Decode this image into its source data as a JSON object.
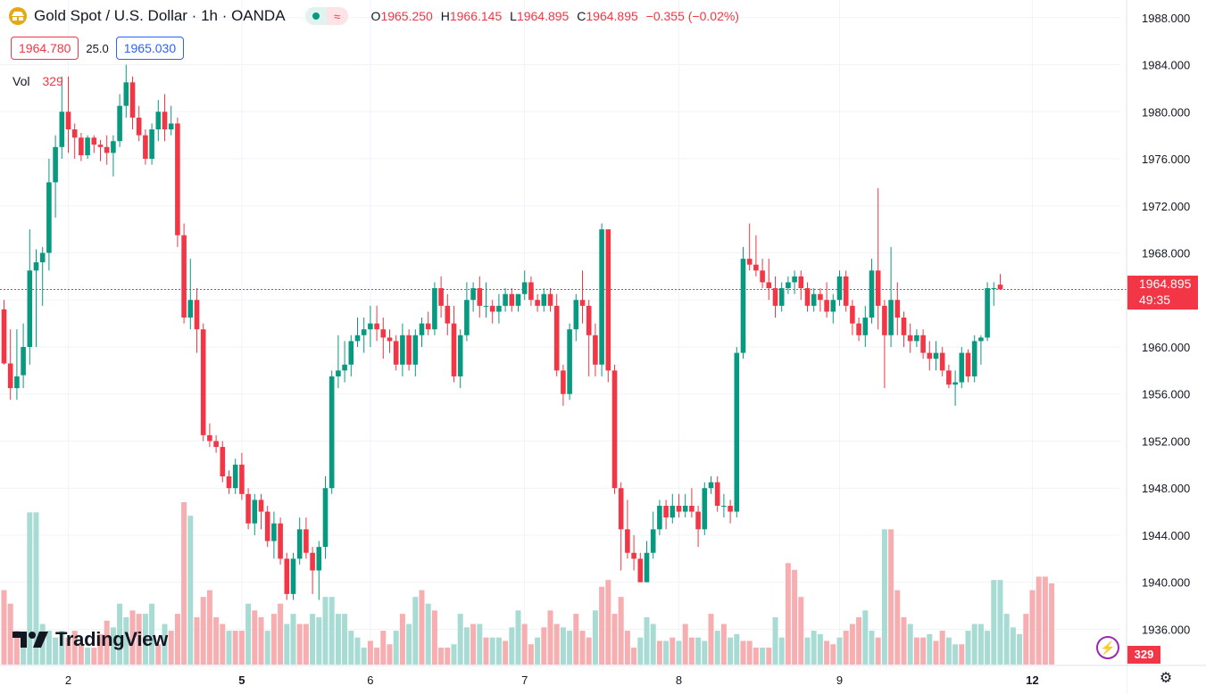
{
  "legend": {
    "symbol_title": "Gold Spot / U.S. Dollar · 1h · OANDA",
    "logo_icon": "gold-bars-icon",
    "open_key": "O",
    "open": "1965.250",
    "high_key": "H",
    "high": "1966.145",
    "low_key": "L",
    "low": "1964.895",
    "close_key": "C",
    "close": "1964.895",
    "change": "−0.355 (−0.02%)"
  },
  "quote": {
    "sell": "1964.780",
    "spread": "25.0",
    "buy": "1965.030"
  },
  "volume": {
    "label": "Vol",
    "value": "329"
  },
  "price_tag": {
    "price": "1964.895",
    "countdown": "49:35"
  },
  "vol_tag": "329",
  "brand": "TradingView",
  "colors": {
    "up": "#089981",
    "down": "#f23645",
    "vol_up": "#a7dbd3",
    "vol_down": "#f7aeb0",
    "grid": "#f0f3fa"
  },
  "chart_data": {
    "type": "candlestick",
    "price_axis": {
      "ticks": [
        "1988.000",
        "1984.000",
        "1980.000",
        "1976.000",
        "1972.000",
        "1968.000",
        "1964.000",
        "1960.000",
        "1956.000",
        "1952.000",
        "1948.000",
        "1944.000",
        "1940.000",
        "1936.000"
      ],
      "ylim": [
        1933.0,
        1989.5
      ],
      "last_price": 1964.895
    },
    "time_axis": {
      "labels": [
        "2",
        "5",
        "6",
        "7",
        "8",
        "9",
        "12"
      ],
      "label_index": [
        10,
        37,
        57,
        81,
        105,
        130,
        160
      ]
    },
    "candles": [
      [
        1963.2,
        1964.0,
        1958.5,
        1958.6
      ],
      [
        1958.6,
        1961.5,
        1955.5,
        1956.5
      ],
      [
        1956.5,
        1961.5,
        1955.5,
        1957.5
      ],
      [
        1957.6,
        1962.0,
        1956.5,
        1960.0
      ],
      [
        1960.0,
        1970.0,
        1958.5,
        1966.5
      ],
      [
        1966.5,
        1968.3,
        1960.0,
        1967.2
      ],
      [
        1967.2,
        1968.5,
        1963.5,
        1968.0
      ],
      [
        1968.0,
        1976.0,
        1966.5,
        1974.0
      ],
      [
        1974.0,
        1978.0,
        1971.0,
        1977.0
      ],
      [
        1977.0,
        1983.0,
        1976.0,
        1980.0
      ],
      [
        1980.0,
        1983.0,
        1976.5,
        1978.5
      ],
      [
        1978.5,
        1979.0,
        1976.0,
        1977.8
      ],
      [
        1977.8,
        1978.2,
        1975.8,
        1976.3
      ],
      [
        1976.3,
        1978.0,
        1976.0,
        1977.8
      ],
      [
        1977.8,
        1978.0,
        1976.5,
        1977.2
      ],
      [
        1977.2,
        1977.6,
        1975.8,
        1977.0
      ],
      [
        1977.0,
        1978.0,
        1975.5,
        1976.5
      ],
      [
        1976.5,
        1978.0,
        1974.5,
        1977.5
      ],
      [
        1977.5,
        1981.5,
        1977.0,
        1980.5
      ],
      [
        1980.5,
        1984.0,
        1979.5,
        1982.5
      ],
      [
        1982.5,
        1983.0,
        1978.5,
        1979.5
      ],
      [
        1979.5,
        1980.5,
        1977.5,
        1978.0
      ],
      [
        1978.0,
        1978.5,
        1975.5,
        1976.0
      ],
      [
        1976.0,
        1979.0,
        1975.5,
        1978.5
      ],
      [
        1978.5,
        1981.0,
        1977.5,
        1980.0
      ],
      [
        1980.0,
        1981.5,
        1977.5,
        1978.5
      ],
      [
        1978.5,
        1980.5,
        1978.0,
        1979.0
      ],
      [
        1979.0,
        1979.5,
        1968.5,
        1969.5
      ],
      [
        1969.5,
        1970.5,
        1962.0,
        1962.5
      ],
      [
        1962.5,
        1967.5,
        1961.5,
        1964.0
      ],
      [
        1964.0,
        1965.0,
        1959.5,
        1961.5
      ],
      [
        1961.5,
        1962.0,
        1952.0,
        1952.5
      ],
      [
        1952.5,
        1953.5,
        1951.5,
        1952.0
      ],
      [
        1952.0,
        1952.5,
        1951.0,
        1951.5
      ],
      [
        1951.5,
        1952.0,
        1948.5,
        1949.0
      ],
      [
        1949.0,
        1949.5,
        1947.5,
        1948.0
      ],
      [
        1948.0,
        1950.5,
        1947.5,
        1950.0
      ],
      [
        1950.0,
        1951.0,
        1947.0,
        1947.5
      ],
      [
        1947.5,
        1948.0,
        1944.5,
        1945.0
      ],
      [
        1945.0,
        1947.5,
        1944.0,
        1947.0
      ],
      [
        1947.0,
        1947.5,
        1944.5,
        1946.0
      ],
      [
        1946.0,
        1946.5,
        1943.0,
        1943.5
      ],
      [
        1943.5,
        1946.0,
        1942.0,
        1945.0
      ],
      [
        1945.0,
        1945.5,
        1941.5,
        1942.0
      ],
      [
        1942.0,
        1942.5,
        1938.5,
        1939.0
      ],
      [
        1939.0,
        1942.5,
        1938.5,
        1942.0
      ],
      [
        1942.0,
        1945.5,
        1941.5,
        1944.5
      ],
      [
        1944.5,
        1945.5,
        1942.0,
        1942.5
      ],
      [
        1942.5,
        1943.0,
        1939.0,
        1941.0
      ],
      [
        1941.0,
        1943.5,
        1938.5,
        1943.0
      ],
      [
        1943.0,
        1949.0,
        1942.0,
        1948.0
      ],
      [
        1948.0,
        1958.0,
        1947.5,
        1957.5
      ],
      [
        1957.5,
        1961.0,
        1956.5,
        1958.0
      ],
      [
        1958.0,
        1960.5,
        1957.0,
        1958.5
      ],
      [
        1958.5,
        1961.0,
        1957.5,
        1960.5
      ],
      [
        1960.5,
        1962.5,
        1960.0,
        1961.0
      ],
      [
        1961.0,
        1962.5,
        1959.5,
        1961.5
      ],
      [
        1961.5,
        1963.5,
        1960.0,
        1962.0
      ],
      [
        1962.0,
        1963.5,
        1960.5,
        1961.5
      ],
      [
        1961.5,
        1962.5,
        1959.0,
        1960.8
      ],
      [
        1960.8,
        1961.5,
        1959.5,
        1960.5
      ],
      [
        1960.5,
        1961.0,
        1958.0,
        1958.5
      ],
      [
        1958.5,
        1962.0,
        1957.5,
        1961.0
      ],
      [
        1961.0,
        1961.5,
        1958.0,
        1958.5
      ],
      [
        1958.5,
        1961.5,
        1957.5,
        1961.0
      ],
      [
        1961.0,
        1962.5,
        1960.0,
        1962.0
      ],
      [
        1962.0,
        1963.0,
        1961.0,
        1961.5
      ],
      [
        1961.5,
        1965.5,
        1961.0,
        1965.0
      ],
      [
        1965.0,
        1966.0,
        1962.5,
        1963.5
      ],
      [
        1963.5,
        1964.5,
        1961.0,
        1962.0
      ],
      [
        1962.0,
        1963.5,
        1957.0,
        1957.5
      ],
      [
        1957.5,
        1961.5,
        1956.5,
        1961.0
      ],
      [
        1961.0,
        1965.5,
        1960.5,
        1964.0
      ],
      [
        1964.0,
        1965.5,
        1963.0,
        1965.0
      ],
      [
        1965.0,
        1966.0,
        1962.5,
        1963.5
      ],
      [
        1963.5,
        1965.5,
        1962.5,
        1963.5
      ],
      [
        1963.5,
        1964.0,
        1962.0,
        1963.0
      ],
      [
        1963.0,
        1964.5,
        1962.0,
        1963.5
      ],
      [
        1963.5,
        1965.0,
        1963.0,
        1964.5
      ],
      [
        1964.5,
        1965.0,
        1963.0,
        1963.5
      ],
      [
        1963.5,
        1964.5,
        1963.0,
        1964.5
      ],
      [
        1964.5,
        1966.5,
        1964.0,
        1965.5
      ],
      [
        1965.5,
        1966.0,
        1963.5,
        1964.0
      ],
      [
        1964.0,
        1964.5,
        1963.0,
        1963.5
      ],
      [
        1963.5,
        1965.0,
        1963.0,
        1964.5
      ],
      [
        1964.5,
        1965.0,
        1963.0,
        1963.5
      ],
      [
        1963.5,
        1964.5,
        1957.5,
        1958.0
      ],
      [
        1958.0,
        1958.5,
        1955.0,
        1956.0
      ],
      [
        1956.0,
        1962.0,
        1955.5,
        1961.5
      ],
      [
        1961.5,
        1964.5,
        1960.5,
        1964.0
      ],
      [
        1964.0,
        1966.5,
        1962.0,
        1963.5
      ],
      [
        1963.5,
        1964.0,
        1957.5,
        1961.0
      ],
      [
        1961.0,
        1962.0,
        1957.5,
        1958.5
      ],
      [
        1958.5,
        1970.5,
        1957.5,
        1970.0
      ],
      [
        1970.0,
        1970.0,
        1957.0,
        1958.0
      ],
      [
        1958.0,
        1958.5,
        1947.5,
        1948.0
      ],
      [
        1948.0,
        1948.5,
        1941.0,
        1944.5
      ],
      [
        1944.5,
        1947.0,
        1942.0,
        1942.5
      ],
      [
        1942.5,
        1944.0,
        1941.0,
        1942.0
      ],
      [
        1942.0,
        1942.5,
        1940.0,
        1940.0
      ],
      [
        1940.0,
        1943.5,
        1940.0,
        1942.5
      ],
      [
        1942.5,
        1946.0,
        1942.0,
        1944.5
      ],
      [
        1944.5,
        1947.0,
        1944.0,
        1946.5
      ],
      [
        1946.5,
        1947.0,
        1944.5,
        1945.5
      ],
      [
        1945.5,
        1947.5,
        1945.0,
        1946.5
      ],
      [
        1946.5,
        1947.5,
        1945.5,
        1946.0
      ],
      [
        1946.0,
        1947.5,
        1945.5,
        1946.5
      ],
      [
        1946.5,
        1948.0,
        1945.5,
        1946.0
      ],
      [
        1946.0,
        1946.5,
        1943.0,
        1944.5
      ],
      [
        1944.5,
        1948.5,
        1944.0,
        1948.0
      ],
      [
        1948.0,
        1949.0,
        1947.5,
        1948.5
      ],
      [
        1948.5,
        1949.0,
        1946.0,
        1946.5
      ],
      [
        1946.5,
        1947.5,
        1945.5,
        1946.5
      ],
      [
        1946.5,
        1947.0,
        1945.0,
        1946.0
      ],
      [
        1946.0,
        1960.0,
        1945.5,
        1959.5
      ],
      [
        1959.5,
        1968.5,
        1959.0,
        1967.5
      ],
      [
        1967.5,
        1970.5,
        1966.5,
        1967.0
      ],
      [
        1967.0,
        1969.5,
        1966.0,
        1966.5
      ],
      [
        1966.5,
        1967.5,
        1965.0,
        1965.5
      ],
      [
        1965.5,
        1967.5,
        1964.0,
        1965.0
      ],
      [
        1965.0,
        1966.0,
        1962.5,
        1963.5
      ],
      [
        1963.5,
        1965.5,
        1963.0,
        1965.0
      ],
      [
        1965.0,
        1966.0,
        1964.5,
        1965.5
      ],
      [
        1965.5,
        1966.5,
        1964.5,
        1966.0
      ],
      [
        1966.0,
        1966.5,
        1964.0,
        1965.0
      ],
      [
        1965.0,
        1965.5,
        1963.0,
        1963.5
      ],
      [
        1963.5,
        1965.0,
        1963.0,
        1964.5
      ],
      [
        1964.5,
        1965.0,
        1963.0,
        1964.0
      ],
      [
        1964.0,
        1965.5,
        1962.5,
        1963.0
      ],
      [
        1963.0,
        1964.5,
        1962.0,
        1964.0
      ],
      [
        1964.0,
        1966.5,
        1963.5,
        1966.0
      ],
      [
        1966.0,
        1966.5,
        1963.0,
        1963.5
      ],
      [
        1963.5,
        1964.0,
        1961.0,
        1962.0
      ],
      [
        1962.0,
        1962.5,
        1960.5,
        1961.0
      ],
      [
        1961.0,
        1963.5,
        1960.0,
        1962.5
      ],
      [
        1962.5,
        1967.5,
        1962.0,
        1966.5
      ],
      [
        1966.5,
        1973.5,
        1961.5,
        1963.5
      ],
      [
        1963.5,
        1964.0,
        1956.5,
        1961.0
      ],
      [
        1961.0,
        1968.5,
        1960.0,
        1964.0
      ],
      [
        1964.0,
        1965.5,
        1961.0,
        1962.5
      ],
      [
        1962.5,
        1963.0,
        1960.0,
        1961.0
      ],
      [
        1961.0,
        1962.0,
        1959.5,
        1960.5
      ],
      [
        1960.5,
        1961.5,
        1960.0,
        1961.0
      ],
      [
        1961.0,
        1961.5,
        1959.0,
        1959.5
      ],
      [
        1959.5,
        1960.5,
        1958.0,
        1959.0
      ],
      [
        1959.0,
        1960.5,
        1958.0,
        1959.5
      ],
      [
        1959.5,
        1960.0,
        1957.5,
        1958.0
      ],
      [
        1958.0,
        1958.5,
        1956.5,
        1956.8
      ],
      [
        1956.8,
        1958.0,
        1955.0,
        1957.0
      ],
      [
        1957.0,
        1960.0,
        1956.5,
        1959.5
      ],
      [
        1959.5,
        1959.8,
        1957.0,
        1957.5
      ],
      [
        1957.5,
        1961.0,
        1957.0,
        1960.5
      ],
      [
        1960.5,
        1961.0,
        1958.5,
        1960.8
      ],
      [
        1960.8,
        1965.5,
        1960.5,
        1965.0
      ],
      [
        1965.0,
        1965.5,
        1963.5,
        1965.0
      ],
      [
        1965.3,
        1966.2,
        1964.9,
        1964.9
      ]
    ],
    "volume": [
      22,
      18,
      10,
      6,
      45,
      45,
      12,
      10,
      8,
      10,
      8,
      10,
      6,
      5,
      5,
      9,
      13,
      11,
      18,
      14,
      16,
      15,
      15,
      18,
      6,
      12,
      10,
      15,
      48,
      44,
      14,
      20,
      22,
      14,
      12,
      10,
      10,
      10,
      18,
      16,
      14,
      10,
      15,
      18,
      12,
      15,
      12,
      12,
      15,
      14,
      20,
      20,
      15,
      15,
      10,
      8,
      5,
      7,
      5,
      10,
      6,
      10,
      15,
      12,
      20,
      22,
      18,
      16,
      5,
      5,
      6,
      15,
      11,
      12,
      12,
      8,
      8,
      8,
      7,
      11,
      16,
      12,
      6,
      8,
      11,
      16,
      12,
      11,
      10,
      15,
      10,
      8,
      16,
      23,
      25,
      15,
      20,
      10,
      5,
      8,
      14,
      12,
      7,
      7,
      8,
      7,
      12,
      8,
      8,
      7,
      15,
      10,
      12,
      8,
      9,
      7,
      7,
      5,
      5,
      5,
      14,
      8,
      30,
      28,
      20,
      8,
      10,
      9,
      7,
      6,
      8,
      10,
      12,
      14,
      16,
      10,
      8,
      40,
      40,
      22,
      14,
      12,
      8,
      8,
      9,
      7,
      10,
      8,
      6,
      6,
      10,
      12,
      12,
      10,
      25,
      25,
      15,
      11,
      9,
      15,
      22,
      26,
      26,
      24
    ],
    "volume_dir": [
      "d",
      "d",
      "d",
      "u",
      "u",
      "u",
      "u",
      "u",
      "u",
      "u",
      "d",
      "d",
      "d",
      "u",
      "d",
      "d",
      "d",
      "u",
      "u",
      "u",
      "d",
      "d",
      "u",
      "u",
      "d",
      "u",
      "d",
      "d",
      "d",
      "u",
      "d",
      "d",
      "d",
      "d",
      "d",
      "u",
      "d",
      "d",
      "u",
      "d",
      "d",
      "u",
      "d",
      "d",
      "u",
      "u",
      "d",
      "d",
      "u",
      "u",
      "u",
      "u",
      "u",
      "u",
      "u",
      "u",
      "u",
      "d",
      "d",
      "d",
      "d",
      "u",
      "d",
      "u",
      "u",
      "d",
      "u",
      "d",
      "d",
      "d",
      "u",
      "u",
      "u",
      "d",
      "u",
      "d",
      "u",
      "u",
      "d",
      "u",
      "u",
      "d",
      "d",
      "u",
      "d",
      "d",
      "d",
      "u",
      "u",
      "d",
      "d",
      "d",
      "u",
      "d",
      "d",
      "d",
      "d",
      "d",
      "d",
      "u",
      "u",
      "u",
      "d",
      "u",
      "d",
      "u",
      "d",
      "d",
      "u",
      "u",
      "d",
      "u",
      "d",
      "u",
      "u",
      "d",
      "d",
      "d",
      "u",
      "d",
      "u",
      "u",
      "d",
      "d",
      "d",
      "u",
      "u",
      "u",
      "d",
      "d",
      "u",
      "d",
      "d",
      "d",
      "u",
      "u",
      "d",
      "u",
      "d",
      "d",
      "d",
      "u",
      "d",
      "d",
      "u",
      "d",
      "d",
      "u",
      "u",
      "d",
      "u",
      "u",
      "u",
      "u",
      "u",
      "u",
      "u",
      "u",
      "u",
      "d"
    ]
  }
}
